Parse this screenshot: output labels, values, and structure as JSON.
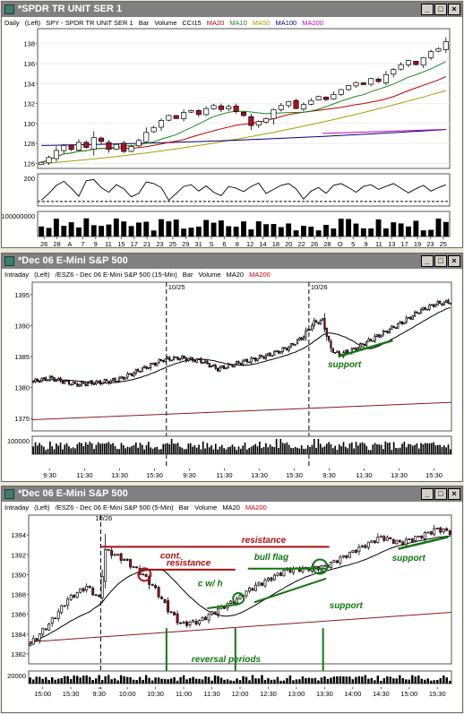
{
  "colors": {
    "candle_up": "#ffffff",
    "candle_dn": "#b01020",
    "ma20": "#000000",
    "ma200": "#8b1a1a",
    "ma10": "#1a8a1a",
    "ma50": "#a0a000",
    "ma100": "#000080",
    "cci": "#000000",
    "annot_red": "#aa1111",
    "annot_green": "#117711"
  },
  "panels": [
    {
      "title": "*SPDR TR UNIT SER 1",
      "icon": "chart-window-icon",
      "legend": [
        {
          "t": "Daily",
          "c": "#000"
        },
        {
          "t": "(Left)",
          "c": "#000"
        },
        {
          "t": "SPY - SPDR TR UNIT SER 1",
          "c": "#000"
        },
        {
          "t": "Bar",
          "c": "#000"
        },
        {
          "t": "Volume",
          "c": "#000"
        },
        {
          "t": "CCI15",
          "c": "#000"
        },
        {
          "t": "MA20",
          "c": "#c00000"
        },
        {
          "t": "MA10",
          "c": "#1a8a1a"
        },
        {
          "t": "MA50",
          "c": "#a0a000"
        },
        {
          "t": "MA100",
          "c": "#000080"
        },
        {
          "t": "MA200",
          "c": "#c000c0"
        }
      ]
    },
    {
      "title": "*Dec 06  E-Mini S&P 500",
      "icon": "chart-window-icon",
      "legend": [
        {
          "t": "Intraday",
          "c": "#000"
        },
        {
          "t": "(Left)",
          "c": "#000"
        },
        {
          "t": "/ESZ6 - Dec 06  E-Mini S&P 500  (15-Min)",
          "c": "#000"
        },
        {
          "t": "Bar",
          "c": "#000"
        },
        {
          "t": "Volume",
          "c": "#000"
        },
        {
          "t": "MA20",
          "c": "#000"
        },
        {
          "t": "MA200",
          "c": "#c00000"
        }
      ]
    },
    {
      "title": "*Dec 06  E-Mini S&P 500",
      "icon": "chart-window-icon",
      "legend": [
        {
          "t": "Intraday",
          "c": "#000"
        },
        {
          "t": "(Left)",
          "c": "#000"
        },
        {
          "t": "/ESZ6 - Dec 06  E-Mini S&P 500  (5-Min)",
          "c": "#000"
        },
        {
          "t": "Bar",
          "c": "#000"
        },
        {
          "t": "Volume",
          "c": "#000"
        },
        {
          "t": "MA20",
          "c": "#000"
        },
        {
          "t": "MA200",
          "c": "#c00000"
        }
      ]
    }
  ],
  "chart_data": [
    {
      "type": "candlestick",
      "name": "SPY daily",
      "ylim": [
        125.5,
        139.5
      ],
      "yticks": [
        126,
        128,
        130,
        132,
        134,
        136,
        138
      ],
      "xlabels": [
        "26",
        "28",
        "A",
        "7",
        "9",
        "11",
        "15",
        "17",
        "21",
        "23",
        "25",
        "29",
        "31",
        "S",
        "6",
        "8",
        "12",
        "14",
        "18",
        "20",
        "22",
        "26",
        "28",
        "O",
        "5",
        "9",
        "11",
        "13",
        "17",
        "19",
        "23",
        "25"
      ],
      "closes": [
        126.1,
        126.6,
        127.3,
        127.8,
        127.4,
        128.1,
        127.6,
        128.6,
        128.2,
        127.4,
        127.9,
        127.2,
        127.7,
        128.3,
        129.1,
        129.6,
        130.3,
        130.8,
        130.5,
        131.1,
        131.3,
        130.9,
        131.5,
        131.8,
        131.4,
        131.7,
        131.2,
        130.8,
        129.8,
        130.2,
        130.5,
        131.4,
        131.8,
        132.2,
        131.5,
        131.9,
        132.3,
        132.7,
        132.4,
        132.9,
        133.4,
        133.8,
        134.1,
        133.9,
        134.5,
        134.2,
        134.9,
        135.4,
        135.9,
        136.3,
        135.9,
        136.6,
        137.2,
        137.5,
        138.2
      ],
      "cci": {
        "ylim": [
          -280,
          280
        ],
        "tick": 200,
        "values": [
          -180,
          -60,
          80,
          150,
          30,
          -110,
          160,
          180,
          40,
          -40,
          90,
          20,
          -120,
          -60,
          140,
          110,
          40,
          -180,
          -60,
          60,
          90,
          -20,
          70,
          -40,
          -100,
          60,
          30,
          -30,
          60,
          120,
          -60,
          10,
          80,
          110,
          20,
          -160,
          -20,
          40,
          -60,
          80,
          110,
          40,
          -40,
          60,
          90,
          10,
          60,
          110,
          30,
          -50,
          20,
          80,
          -20,
          40,
          90
        ]
      },
      "volume_label": "100000000"
    },
    {
      "type": "candlestick",
      "name": "ES 15-min",
      "ylim": [
        1373,
        1397
      ],
      "yticks": [
        1375,
        1380,
        1385,
        1390,
        1395
      ],
      "xlabels": [
        "9:30",
        "11:30",
        "13:30",
        "15:30",
        "9:30",
        "11:30",
        "13:30",
        "15:30",
        "9:30",
        "11:30",
        "13:30",
        "15:30"
      ],
      "date_markers": [
        "10/25",
        "10/26"
      ],
      "annotations": [
        "support"
      ],
      "volume_label": "100000"
    },
    {
      "type": "candlestick",
      "name": "ES 5-min",
      "ylim": [
        1381,
        1396
      ],
      "yticks": [
        1382,
        1384,
        1386,
        1388,
        1390,
        1392,
        1394
      ],
      "xlabels": [
        "15:00",
        "15:30",
        "9:30",
        "10:00",
        "10:30",
        "11:00",
        "11:30",
        "12:00",
        "12:30",
        "13:00",
        "13:30",
        "14:00",
        "14:30",
        "15:00",
        "15:30"
      ],
      "date_markers": [
        "10/26"
      ],
      "annotations": [
        "cont.",
        "resistance",
        "resistance",
        "bull flag",
        "c w/ h",
        "support",
        "support",
        "reversal periods"
      ],
      "volume_label": "20000"
    }
  ]
}
